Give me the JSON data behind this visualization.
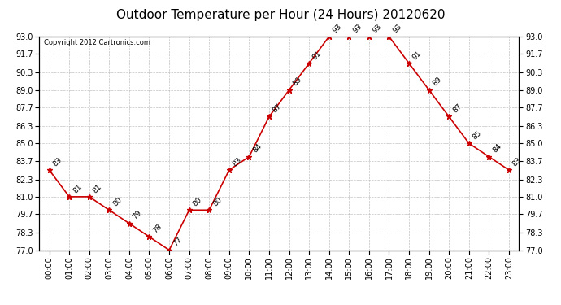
{
  "title": "Outdoor Temperature per Hour (24 Hours) 20120620",
  "copyright_text": "Copyright 2012 Cartronics.com",
  "hours": [
    "00:00",
    "01:00",
    "02:00",
    "03:00",
    "04:00",
    "05:00",
    "06:00",
    "07:00",
    "08:00",
    "09:00",
    "10:00",
    "11:00",
    "12:00",
    "13:00",
    "14:00",
    "15:00",
    "16:00",
    "17:00",
    "18:00",
    "19:00",
    "20:00",
    "21:00",
    "22:00",
    "23:00"
  ],
  "temps": [
    83,
    81,
    81,
    80,
    79,
    78,
    77,
    80,
    80,
    83,
    84,
    87,
    89,
    91,
    93,
    93,
    93,
    93,
    91,
    89,
    87,
    85,
    84,
    83
  ],
  "line_color": "#cc0000",
  "marker_color": "#cc0000",
  "background_color": "#ffffff",
  "grid_color": "#bbbbbb",
  "ylim_min": 77.0,
  "ylim_max": 93.0,
  "yticks": [
    77.0,
    78.3,
    79.7,
    81.0,
    82.3,
    83.7,
    85.0,
    86.3,
    87.7,
    89.0,
    90.3,
    91.7,
    93.0
  ],
  "title_fontsize": 11,
  "tick_fontsize": 7,
  "annotation_fontsize": 6.5
}
